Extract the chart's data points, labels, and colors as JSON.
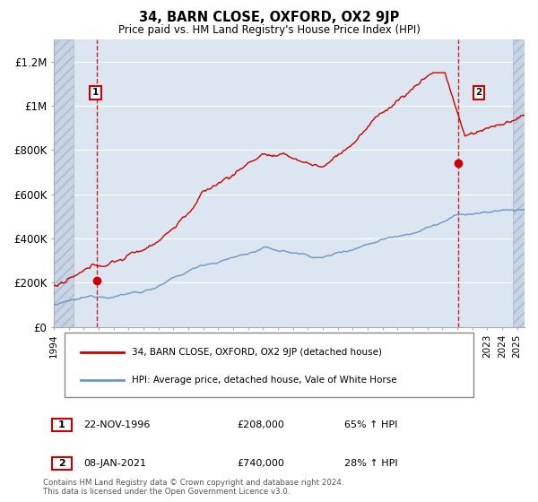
{
  "title": "34, BARN CLOSE, OXFORD, OX2 9JP",
  "subtitle": "Price paid vs. HM Land Registry's House Price Index (HPI)",
  "legend_line1": "34, BARN CLOSE, OXFORD, OX2 9JP (detached house)",
  "legend_line2": "HPI: Average price, detached house, Vale of White Horse",
  "annotation1_num": "1",
  "annotation1_date": "22-NOV-1996",
  "annotation1_price": "£208,000",
  "annotation1_hpi": "65% ↑ HPI",
  "annotation2_num": "2",
  "annotation2_date": "08-JAN-2021",
  "annotation2_price": "£740,000",
  "annotation2_hpi": "28% ↑ HPI",
  "footer": "Contains HM Land Registry data © Crown copyright and database right 2024.\nThis data is licensed under the Open Government Licence v3.0.",
  "sale1_year": 1996.9,
  "sale1_price": 208000,
  "sale2_year": 2021.03,
  "sale2_price": 740000,
  "xmin": 1994,
  "xmax": 2025.5,
  "ymin": 0,
  "ymax": 1300000,
  "yticks": [
    0,
    200000,
    400000,
    600000,
    800000,
    1000000,
    1200000
  ],
  "ytick_labels": [
    "£0",
    "£200K",
    "£400K",
    "£600K",
    "£800K",
    "£1M",
    "£1.2M"
  ],
  "red_color": "#cc0000",
  "blue_color": "#6699cc",
  "bg_color": "#dce6f1",
  "hatch_color": "#c0c8d8",
  "grid_color": "#ffffff",
  "vline_color": "#cc0000"
}
